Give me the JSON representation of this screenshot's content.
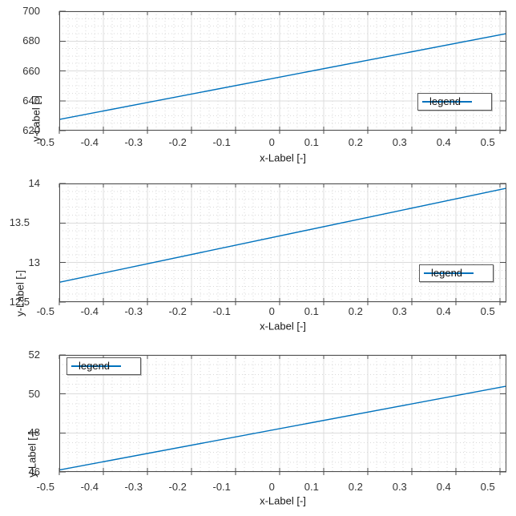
{
  "colors": {
    "line": "#0072BD",
    "grid_major": "#dcdcdc",
    "grid_minor": "#d9d9d9",
    "axis": "#4d4d4d",
    "tick_text": "#333333",
    "label_text": "#171717",
    "legend_border": "#5a5a5a",
    "background": "#ffffff"
  },
  "chart_data": [
    {
      "type": "line",
      "title": "",
      "xlabel": "x-Label [-]",
      "ylabel": "y-Label [-]",
      "xlim": [
        -0.5,
        0.515
      ],
      "ylim": [
        620,
        700
      ],
      "x_ticks": [
        -0.5,
        -0.4,
        -0.3,
        -0.2,
        -0.1,
        0,
        0.1,
        0.2,
        0.3,
        0.4,
        0.5
      ],
      "x_tick_labels": [
        "-0.5",
        "-0.4",
        "-0.3",
        "-0.2",
        "-0.1",
        "0",
        "0.1",
        "0.2",
        "0.3",
        "0.4",
        "0.5"
      ],
      "y_ticks": [
        700,
        680,
        660,
        640,
        620
      ],
      "y_tick_labels": [
        "700",
        "680",
        "660",
        "640",
        "620"
      ],
      "grid": true,
      "minor_grid": true,
      "legend": {
        "entries": [
          "legend"
        ],
        "position": "inside-right-lower"
      },
      "series": [
        {
          "name": "legend",
          "x": [
            -0.5,
            0.515
          ],
          "y": [
            627.5,
            685.0
          ],
          "color": "#0072BD"
        }
      ]
    },
    {
      "type": "line",
      "title": "",
      "xlabel": "x-Label [-]",
      "ylabel": "y-Label [-]",
      "xlim": [
        -0.5,
        0.515
      ],
      "ylim": [
        12.5,
        14
      ],
      "x_ticks": [
        -0.5,
        -0.4,
        -0.3,
        -0.2,
        -0.1,
        0,
        0.1,
        0.2,
        0.3,
        0.4,
        0.5
      ],
      "x_tick_labels": [
        "-0.5",
        "-0.4",
        "-0.3",
        "-0.2",
        "-0.1",
        "0",
        "0.1",
        "0.2",
        "0.3",
        "0.4",
        "0.5"
      ],
      "y_ticks": [
        14,
        13.5,
        13,
        12.5
      ],
      "y_tick_labels": [
        "14",
        "13.5",
        "13",
        "12.5"
      ],
      "grid": true,
      "minor_grid": true,
      "legend": {
        "entries": [
          "legend"
        ],
        "position": "inside-right-lower"
      },
      "series": [
        {
          "name": "legend",
          "x": [
            -0.5,
            0.515
          ],
          "y": [
            12.75,
            13.94
          ],
          "color": "#0072BD"
        }
      ]
    },
    {
      "type": "line",
      "title": "",
      "xlabel": "x-Label [-]",
      "ylabel": "y-Label [-]",
      "xlim": [
        -0.5,
        0.515
      ],
      "ylim": [
        46,
        52
      ],
      "x_ticks": [
        -0.5,
        -0.4,
        -0.3,
        -0.2,
        -0.1,
        0,
        0.1,
        0.2,
        0.3,
        0.4,
        0.5
      ],
      "x_tick_labels": [
        "-0.5",
        "-0.4",
        "-0.3",
        "-0.2",
        "-0.1",
        "0",
        "0.1",
        "0.2",
        "0.3",
        "0.4",
        "0.5"
      ],
      "y_ticks": [
        52,
        50,
        48,
        46
      ],
      "y_tick_labels": [
        "52",
        "50",
        "48",
        "46"
      ],
      "grid": true,
      "minor_grid": true,
      "legend": {
        "entries": [
          "legend"
        ],
        "position": "inside-top-left"
      },
      "series": [
        {
          "name": "legend",
          "x": [
            -0.5,
            0.515
          ],
          "y": [
            46.1,
            50.4
          ],
          "color": "#0072BD"
        }
      ]
    }
  ]
}
